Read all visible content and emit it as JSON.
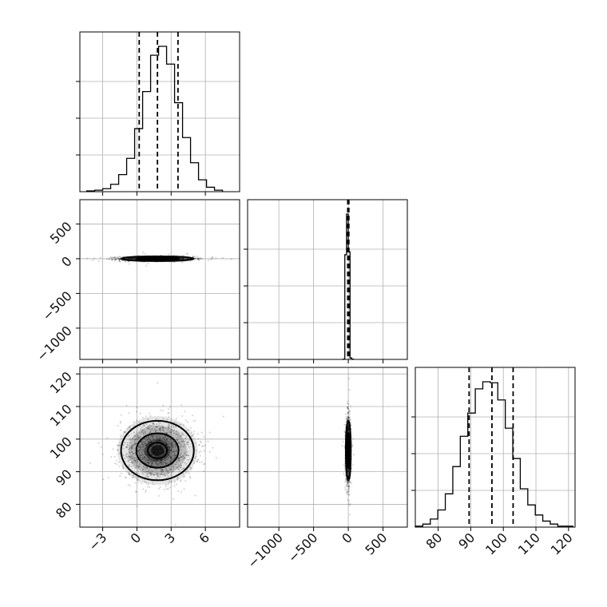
{
  "chart_data": {
    "type": "corner",
    "grid": true,
    "parameters": [
      {
        "range": [
          -5,
          9
        ],
        "ticks": [
          -3,
          0,
          3,
          6
        ],
        "tick_labels": [
          "−3",
          "0",
          "3",
          "6"
        ],
        "quantiles": [
          0.2,
          1.8,
          3.6
        ],
        "hist_bins": [
          -4.4,
          -3.7,
          -3.0,
          -2.3,
          -1.6,
          -0.9,
          -0.2,
          0.5,
          1.2,
          1.9,
          2.6,
          3.3,
          4.0,
          4.7,
          5.4,
          6.1,
          6.8,
          7.5
        ],
        "hist_counts": [
          1,
          2,
          4,
          10,
          23,
          45,
          85,
          135,
          184,
          196,
          172,
          120,
          73,
          39,
          16,
          6,
          2
        ]
      },
      {
        "range": [
          -1450,
          850
        ],
        "ticks": [
          -1000,
          -500,
          0,
          500
        ],
        "tick_labels": [
          "−1000",
          "−500",
          "0",
          "500"
        ],
        "quantiles": [
          -8,
          0,
          8
        ],
        "hist_bins": [
          -75,
          -50,
          -25,
          0,
          25,
          50,
          75
        ],
        "hist_counts": [
          2,
          720,
          1000,
          740,
          10,
          2
        ]
      },
      {
        "range": [
          73,
          122
        ],
        "ticks": [
          80,
          90,
          100,
          110,
          120
        ],
        "tick_labels": [
          "80",
          "90",
          "100",
          "110",
          "120"
        ],
        "quantiles": [
          89.5,
          96.5,
          103
        ],
        "hist_bins": [
          73,
          75.3,
          77.6,
          79.9,
          82.2,
          84.5,
          86.8,
          89.1,
          91.4,
          93.7,
          96.0,
          98.3,
          100.6,
          102.9,
          105.2,
          107.5,
          109.8,
          112.1,
          114.4,
          116.7,
          119,
          121.3
        ],
        "hist_counts": [
          1,
          3,
          8,
          17,
          33,
          60,
          90,
          113,
          137,
          144,
          143,
          126,
          98,
          68,
          38,
          22,
          12,
          6,
          3,
          1,
          1
        ]
      }
    ],
    "pairs": [
      {
        "x": 0,
        "y": 1,
        "center": [
          1.8,
          0
        ],
        "spread": [
          1.6,
          18
        ],
        "contour_levels": [
          0.5,
          1.1,
          1.9
        ]
      },
      {
        "x": 0,
        "y": 2,
        "center": [
          1.8,
          96.5
        ],
        "spread": [
          1.6,
          4.8
        ],
        "contour_levels": [
          0.5,
          1.1,
          1.9
        ]
      },
      {
        "x": 1,
        "y": 2,
        "center": [
          0,
          96.5
        ],
        "spread": [
          18,
          4.8
        ],
        "contour_levels": [
          0.5,
          1.1,
          1.9
        ]
      }
    ]
  }
}
